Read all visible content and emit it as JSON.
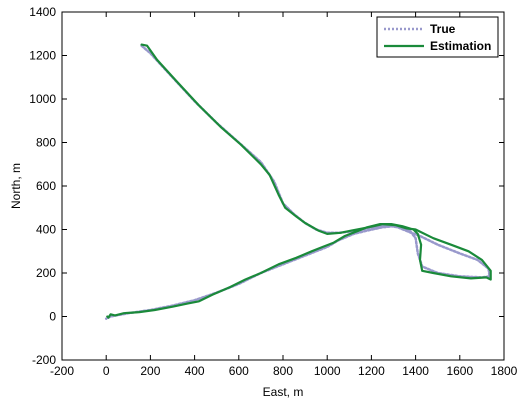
{
  "chart_data": {
    "type": "line",
    "title": "",
    "xlabel": "East, m",
    "ylabel": "North, m",
    "xlim": [
      -200,
      1800
    ],
    "ylim": [
      -200,
      1400
    ],
    "xticks": [
      -200,
      0,
      200,
      400,
      600,
      800,
      1000,
      1200,
      1400,
      1600,
      1800
    ],
    "yticks": [
      -200,
      0,
      200,
      400,
      600,
      800,
      1000,
      1200,
      1400
    ],
    "grid": false,
    "legend_position": "top-right",
    "series": [
      {
        "name": "True",
        "color": "#9999cc",
        "style": "dotted",
        "points": [
          [
            160,
            1245
          ],
          [
            200,
            1210
          ],
          [
            300,
            1100
          ],
          [
            400,
            990
          ],
          [
            500,
            890
          ],
          [
            600,
            800
          ],
          [
            700,
            710
          ],
          [
            760,
            620
          ],
          [
            800,
            520
          ],
          [
            850,
            470
          ],
          [
            900,
            430
          ],
          [
            950,
            400
          ],
          [
            1000,
            385
          ],
          [
            1050,
            385
          ],
          [
            1100,
            390
          ],
          [
            1150,
            400
          ],
          [
            1200,
            410
          ],
          [
            1260,
            420
          ],
          [
            1320,
            410
          ],
          [
            1380,
            385
          ],
          [
            1420,
            370
          ],
          [
            1500,
            330
          ],
          [
            1600,
            290
          ],
          [
            1680,
            260
          ],
          [
            1730,
            220
          ],
          [
            1735,
            185
          ],
          [
            1700,
            180
          ],
          [
            1600,
            185
          ],
          [
            1500,
            200
          ],
          [
            1430,
            230
          ],
          [
            1410,
            290
          ],
          [
            1400,
            360
          ],
          [
            1370,
            400
          ],
          [
            1300,
            415
          ],
          [
            1250,
            410
          ],
          [
            1180,
            395
          ],
          [
            1120,
            380
          ],
          [
            1050,
            350
          ],
          [
            1000,
            320
          ],
          [
            900,
            280
          ],
          [
            800,
            240
          ],
          [
            700,
            200
          ],
          [
            600,
            150
          ],
          [
            500,
            110
          ],
          [
            400,
            75
          ],
          [
            300,
            50
          ],
          [
            200,
            30
          ],
          [
            100,
            15
          ],
          [
            20,
            0
          ],
          [
            0,
            -10
          ]
        ]
      },
      {
        "name": "Estimation",
        "color": "#1a8a3a",
        "style": "solid",
        "points": [
          [
            160,
            1250
          ],
          [
            185,
            1245
          ],
          [
            230,
            1180
          ],
          [
            320,
            1080
          ],
          [
            420,
            970
          ],
          [
            520,
            870
          ],
          [
            610,
            790
          ],
          [
            700,
            700
          ],
          [
            740,
            650
          ],
          [
            780,
            560
          ],
          [
            810,
            500
          ],
          [
            860,
            460
          ],
          [
            900,
            430
          ],
          [
            960,
            395
          ],
          [
            1000,
            380
          ],
          [
            1060,
            385
          ],
          [
            1110,
            395
          ],
          [
            1160,
            405
          ],
          [
            1210,
            415
          ],
          [
            1250,
            425
          ],
          [
            1310,
            420
          ],
          [
            1360,
            405
          ],
          [
            1400,
            400
          ],
          [
            1480,
            360
          ],
          [
            1560,
            330
          ],
          [
            1640,
            300
          ],
          [
            1700,
            260
          ],
          [
            1740,
            210
          ],
          [
            1740,
            170
          ],
          [
            1720,
            180
          ],
          [
            1650,
            175
          ],
          [
            1560,
            185
          ],
          [
            1480,
            200
          ],
          [
            1430,
            210
          ],
          [
            1420,
            260
          ],
          [
            1425,
            330
          ],
          [
            1410,
            380
          ],
          [
            1390,
            400
          ],
          [
            1340,
            415
          ],
          [
            1290,
            425
          ],
          [
            1240,
            425
          ],
          [
            1180,
            410
          ],
          [
            1130,
            390
          ],
          [
            1080,
            370
          ],
          [
            1030,
            340
          ],
          [
            980,
            320
          ],
          [
            930,
            300
          ],
          [
            860,
            270
          ],
          [
            780,
            240
          ],
          [
            700,
            200
          ],
          [
            630,
            170
          ],
          [
            560,
            135
          ],
          [
            480,
            100
          ],
          [
            420,
            70
          ],
          [
            370,
            60
          ],
          [
            300,
            45
          ],
          [
            220,
            30
          ],
          [
            150,
            20
          ],
          [
            80,
            15
          ],
          [
            40,
            5
          ],
          [
            20,
            10
          ],
          [
            10,
            -5
          ],
          [
            5,
            0
          ]
        ]
      }
    ]
  }
}
